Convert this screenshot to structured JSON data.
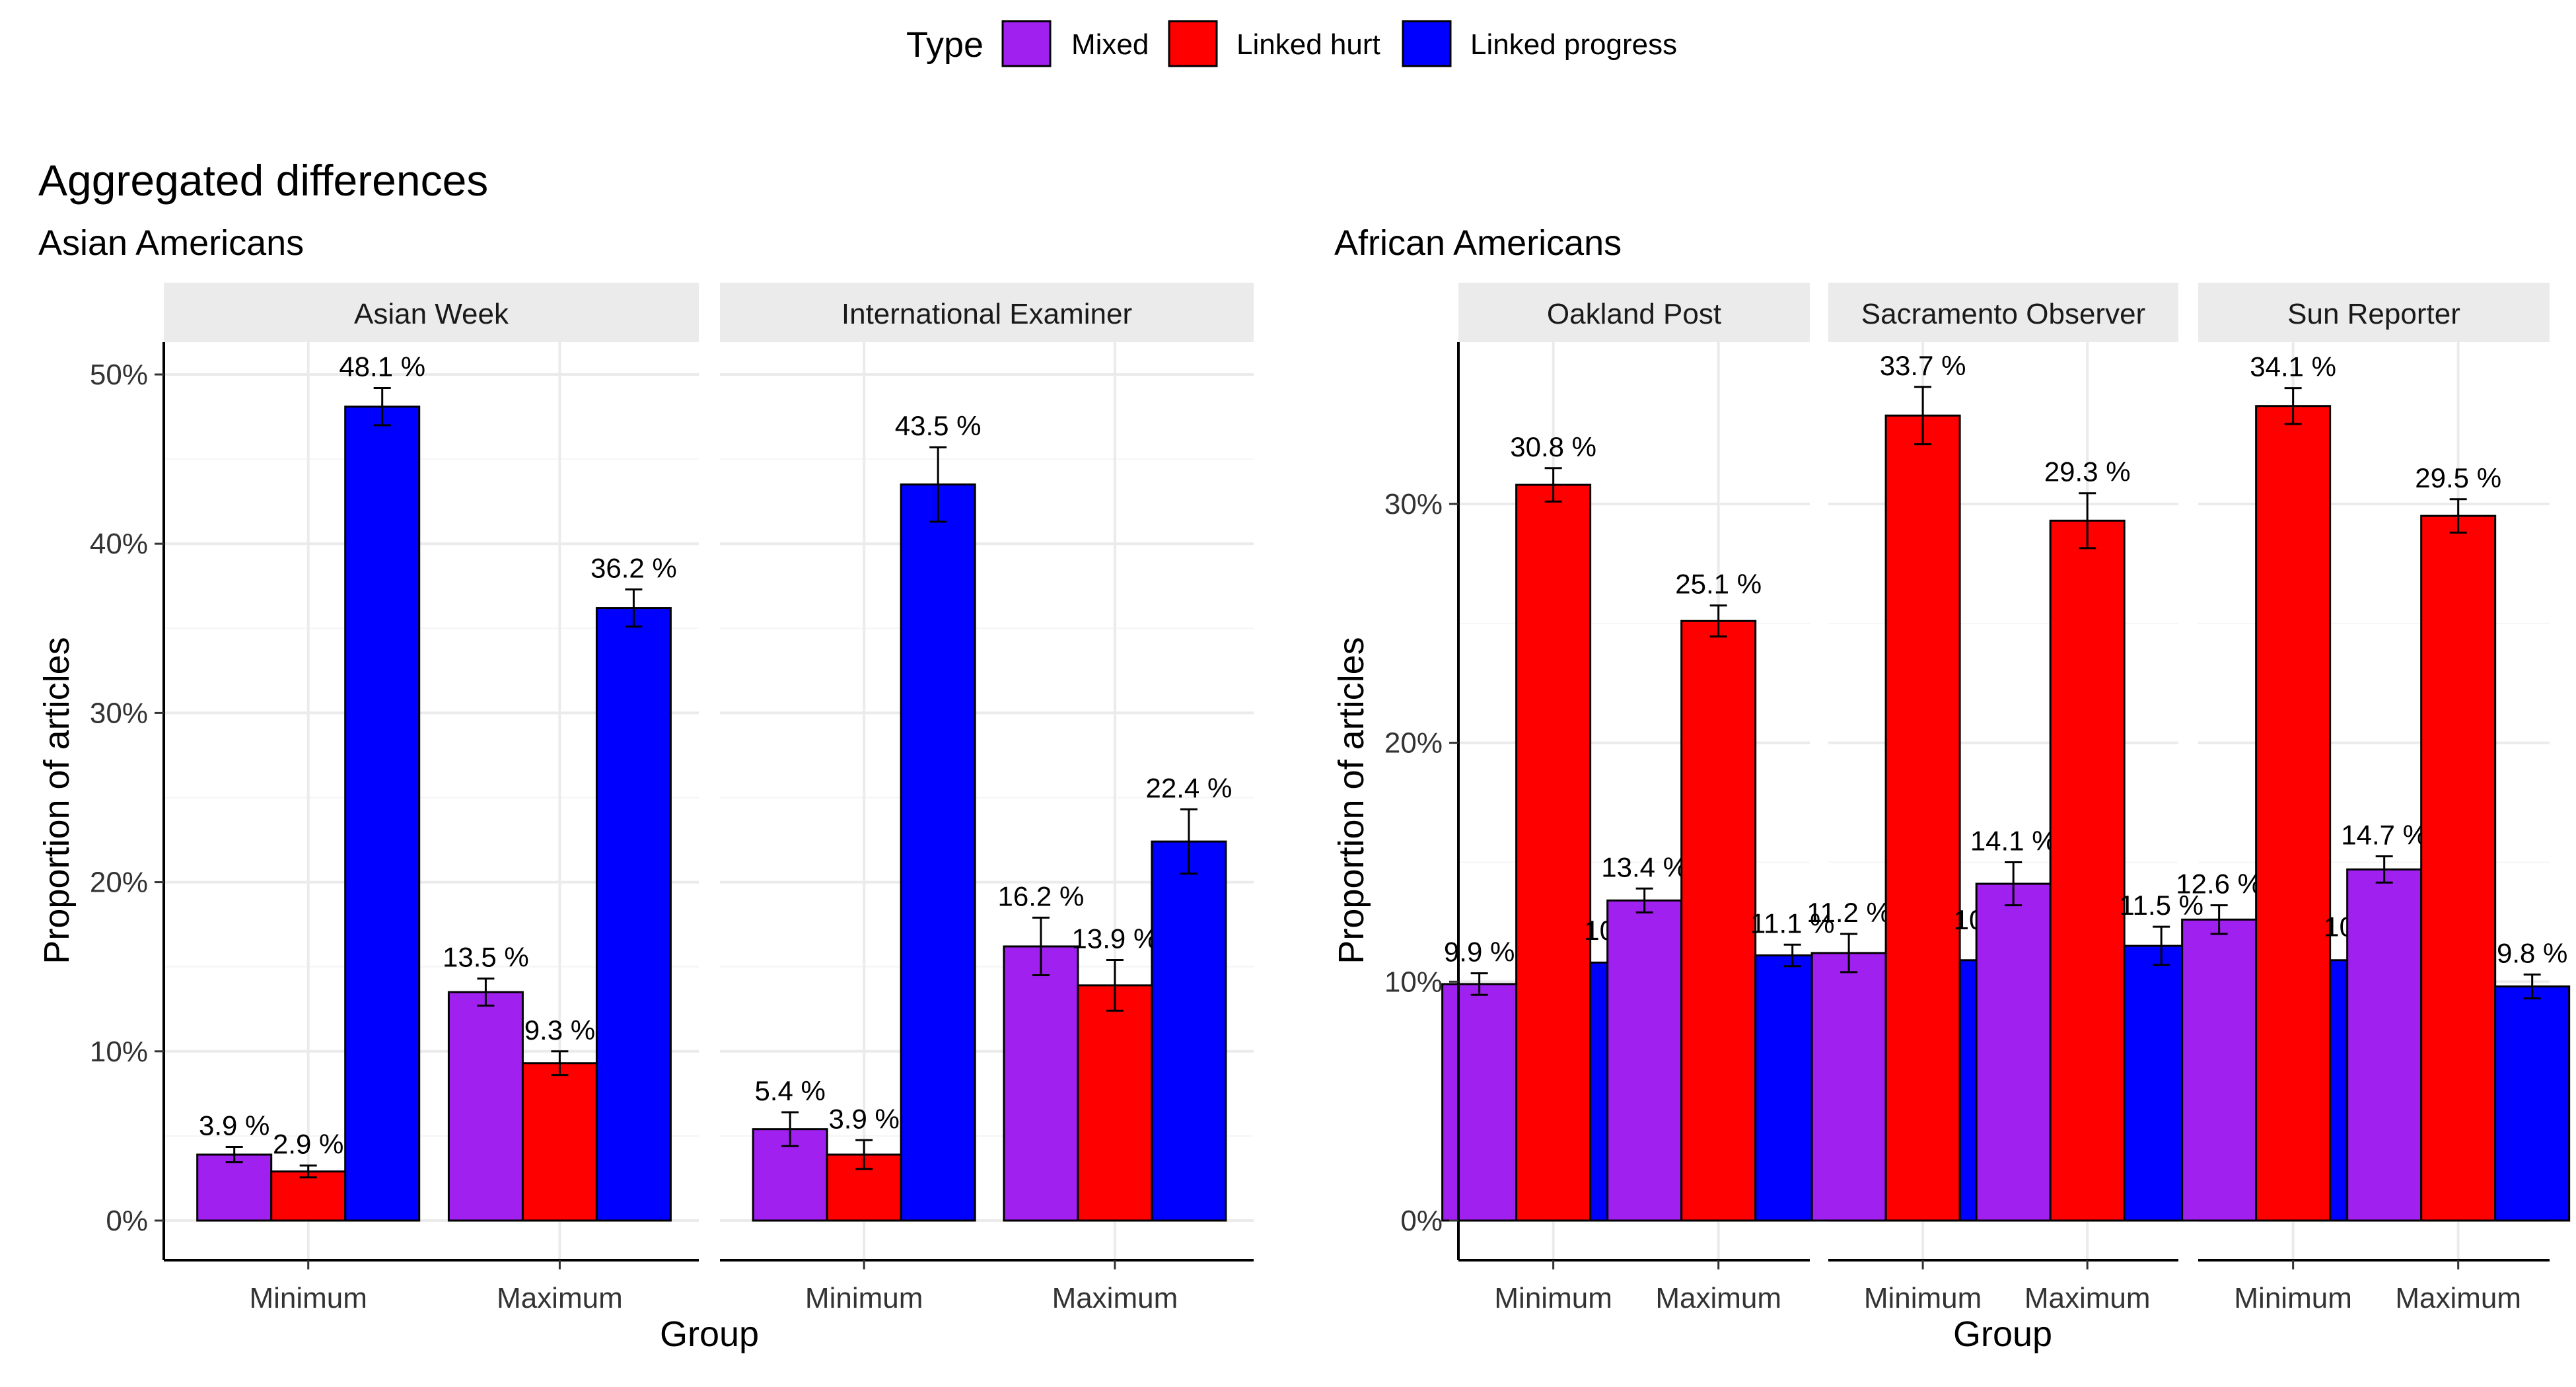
{
  "legend": {
    "title": "Type",
    "items": [
      {
        "label": "Mixed",
        "color": "#A020F0"
      },
      {
        "label": "Linked hurt",
        "color": "#FF0000"
      },
      {
        "label": "Linked progress",
        "color": "#0000FF"
      }
    ]
  },
  "title": "Aggregated differences",
  "chart_data": [
    {
      "type": "bar",
      "subtitle": "Asian Americans",
      "ylabel": "Proportion of articles",
      "xlabel": "Group",
      "ylim": [
        0,
        52
      ],
      "y_ticks": [
        "0%",
        "10%",
        "20%",
        "30%",
        "40%",
        "50%"
      ],
      "y_tick_values": [
        0,
        10,
        20,
        30,
        40,
        50
      ],
      "series_names": [
        "Mixed",
        "Linked hurt",
        "Linked progress"
      ],
      "categories": [
        "Minimum",
        "Maximum"
      ],
      "facets": [
        {
          "name": "Asian Week",
          "groups": [
            {
              "category": "Minimum",
              "values": [
                3.9,
                2.9,
                48.1
              ],
              "labels": [
                "3.9 %",
                "2.9 %",
                "48.1 %"
              ],
              "err": [
                0.45,
                0.35,
                1.1
              ]
            },
            {
              "category": "Maximum",
              "values": [
                13.5,
                9.3,
                36.2
              ],
              "labels": [
                "13.5 %",
                "9.3 %",
                "36.2 %"
              ],
              "err": [
                0.8,
                0.7,
                1.1
              ]
            }
          ]
        },
        {
          "name": "International Examiner",
          "groups": [
            {
              "category": "Minimum",
              "values": [
                5.4,
                3.9,
                43.5
              ],
              "labels": [
                "5.4 %",
                "3.9 %",
                "43.5 %"
              ],
              "err": [
                1.0,
                0.85,
                2.2
              ]
            },
            {
              "category": "Maximum",
              "values": [
                16.2,
                13.9,
                22.4
              ],
              "labels": [
                "16.2 %",
                "13.9 %",
                "22.4 %"
              ],
              "err": [
                1.7,
                1.5,
                1.9
              ]
            }
          ]
        }
      ]
    },
    {
      "type": "bar",
      "subtitle": "African Americans",
      "ylabel": "Proportion of articles",
      "xlabel": "Group",
      "ylim": [
        0,
        36.5
      ],
      "y_ticks": [
        "0%",
        "10%",
        "20%",
        "30%"
      ],
      "y_tick_values": [
        0,
        10,
        20,
        30
      ],
      "series_names": [
        "Mixed",
        "Linked hurt",
        "Linked progress"
      ],
      "categories": [
        "Minimum",
        "Maximum"
      ],
      "facets": [
        {
          "name": "Oakland Post",
          "groups": [
            {
              "category": "Minimum",
              "values": [
                9.9,
                30.8,
                10.8
              ],
              "labels": [
                "9.9 %",
                "30.8 %",
                "10.8 %"
              ],
              "err": [
                0.45,
                0.7,
                0.45
              ]
            },
            {
              "category": "Maximum",
              "values": [
                13.4,
                25.1,
                11.1
              ],
              "labels": [
                "13.4 %",
                "25.1 %",
                "11.1 %"
              ],
              "err": [
                0.5,
                0.65,
                0.45
              ]
            }
          ]
        },
        {
          "name": "Sacramento Observer",
          "groups": [
            {
              "category": "Minimum",
              "values": [
                11.2,
                33.7,
                10.9
              ],
              "labels": [
                "11.2 %",
                "33.7 %",
                "10.9 %"
              ],
              "err": [
                0.8,
                1.2,
                0.8
              ]
            },
            {
              "category": "Maximum",
              "values": [
                14.1,
                29.3,
                11.5
              ],
              "labels": [
                "14.1 %",
                "29.3 %",
                "11.5 %"
              ],
              "err": [
                0.9,
                1.15,
                0.8
              ]
            }
          ]
        },
        {
          "name": "Sun Reporter",
          "groups": [
            {
              "category": "Minimum",
              "values": [
                12.6,
                34.1,
                10.9
              ],
              "labels": [
                "12.6 %",
                "34.1 %",
                "10.9 %"
              ],
              "err": [
                0.6,
                0.75,
                0.5
              ]
            },
            {
              "category": "Maximum",
              "values": [
                14.7,
                29.5,
                9.8
              ],
              "labels": [
                "14.7 %",
                "29.5 %",
                "9.8 %"
              ],
              "err": [
                0.55,
                0.7,
                0.5
              ]
            }
          ]
        }
      ]
    }
  ]
}
